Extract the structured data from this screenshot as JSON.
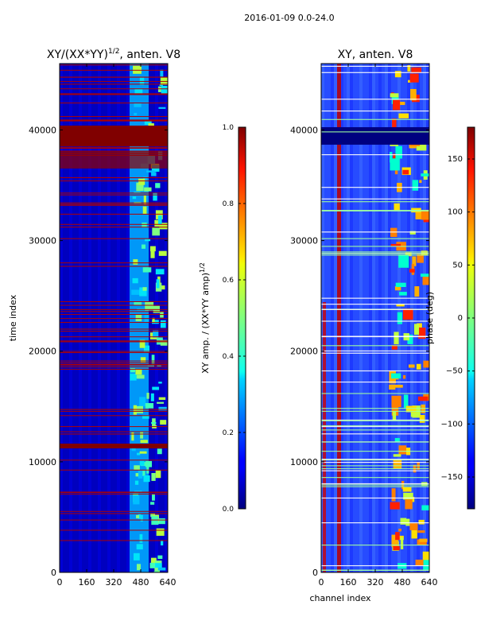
{
  "figure": {
    "suptitle": "2016-01-09 0.0-24.0"
  },
  "chart_data": [
    {
      "type": "heatmap",
      "title": "XY/(XX*YY)",
      "title_exponent": "1/2",
      "title_suffix": ", anten. V8",
      "xlabel": "",
      "ylabel": "time index",
      "xlim": [
        0,
        640
      ],
      "ylim": [
        0,
        46000
      ],
      "x_ticks": [
        0,
        160,
        320,
        480,
        640
      ],
      "y_ticks": [
        0,
        10000,
        20000,
        30000,
        40000
      ],
      "colorbar": {
        "label": "XY amp. / (XX*YY amp)",
        "label_exponent": "1/2",
        "range": [
          0.0,
          1.0
        ],
        "ticks": [
          "0.0",
          "0.2",
          "0.4",
          "0.6",
          "0.8",
          "1.0"
        ]
      }
    },
    {
      "type": "heatmap",
      "title": "XY, anten. V8",
      "xlabel": "channel index",
      "ylabel": "",
      "xlim": [
        0,
        640
      ],
      "ylim": [
        0,
        46000
      ],
      "x_ticks": [
        0,
        160,
        320,
        480,
        640
      ],
      "y_ticks": [
        0,
        10000,
        20000,
        30000,
        40000
      ],
      "colorbar": {
        "label": "phase (deg)",
        "range": [
          -180,
          180
        ],
        "ticks": [
          "150",
          "100",
          "50",
          "0",
          "−50",
          "−100",
          "−150"
        ]
      }
    }
  ]
}
